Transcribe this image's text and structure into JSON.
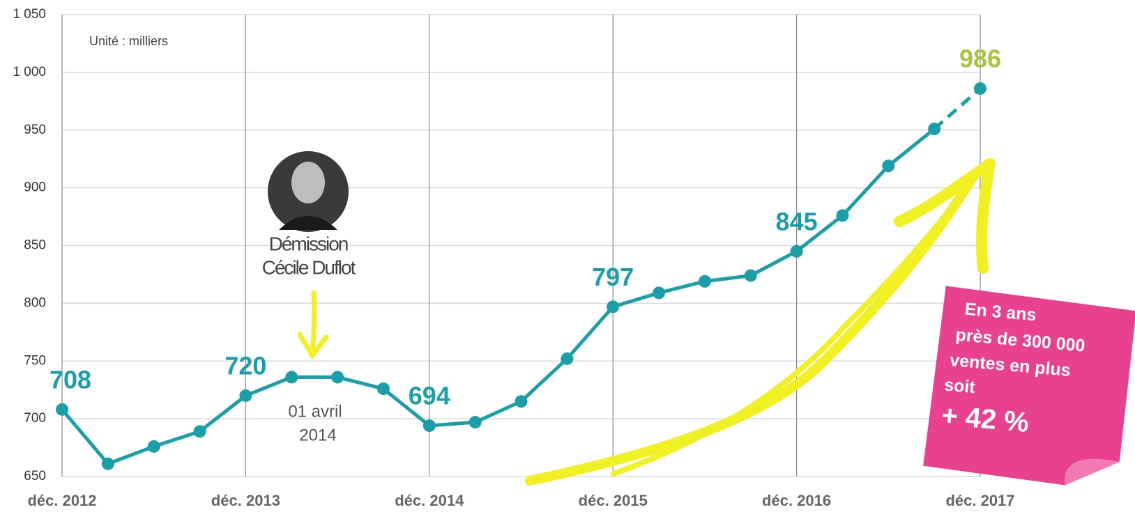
{
  "chart_data": {
    "type": "line",
    "categories": [
      "déc. 2012",
      null,
      null,
      null,
      "déc. 2013",
      null,
      null,
      null,
      "déc. 2014",
      null,
      null,
      null,
      "déc. 2015",
      null,
      null,
      null,
      "déc. 2016",
      null,
      null,
      null,
      "déc. 2017"
    ],
    "values": [
      708,
      661,
      676,
      689,
      720,
      736,
      736,
      726,
      694,
      697,
      715,
      752,
      797,
      809,
      819,
      824,
      845,
      876,
      919,
      951,
      986
    ],
    "show_label": [
      true,
      false,
      false,
      false,
      true,
      false,
      false,
      false,
      true,
      false,
      false,
      false,
      true,
      false,
      false,
      false,
      true,
      false,
      false,
      false,
      true
    ],
    "color": "#1a9ea8",
    "highlight_color": "#a8c43c",
    "dashed_last": true,
    "ylim": [
      650,
      1050
    ],
    "yticks": [
      650,
      700,
      750,
      800,
      850,
      900,
      950,
      {
        "value": 1000,
        "label": "1 000"
      },
      {
        "value": 1050,
        "label": "1 050"
      }
    ],
    "grid": true,
    "annotations": [
      "Unité : milliers",
      "Démission",
      "Cécile Duflot",
      "01 avril",
      "2014",
      "En 3 ans",
      "près de 300 000",
      "ventes en plus",
      "soit",
      "+ 42 %"
    ]
  }
}
